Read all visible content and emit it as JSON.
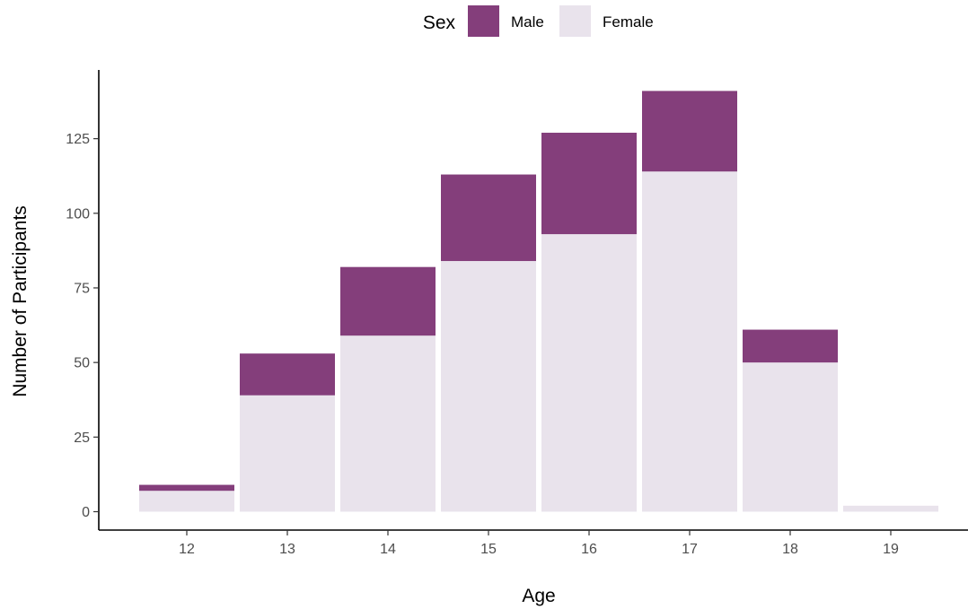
{
  "chart_data": {
    "type": "bar",
    "stacked": true,
    "xlabel": "Age",
    "ylabel": "Number of Participants",
    "categories": [
      "12",
      "13",
      "14",
      "15",
      "16",
      "17",
      "18",
      "19"
    ],
    "series": [
      {
        "name": "Female",
        "color": "#E9E3EC",
        "values": [
          7,
          39,
          59,
          84,
          93,
          114,
          50,
          2
        ]
      },
      {
        "name": "Male",
        "color": "#843E7B",
        "values": [
          2,
          14,
          23,
          29,
          34,
          27,
          11,
          0
        ]
      }
    ],
    "ylim": [
      0,
      145
    ],
    "yticks": [
      0,
      25,
      50,
      75,
      100,
      125
    ],
    "grid": false,
    "legend": {
      "title": "Sex",
      "position": "top",
      "entries": [
        {
          "label": "Male",
          "color": "#843E7B"
        },
        {
          "label": "Female",
          "color": "#E9E3EC"
        }
      ]
    }
  }
}
